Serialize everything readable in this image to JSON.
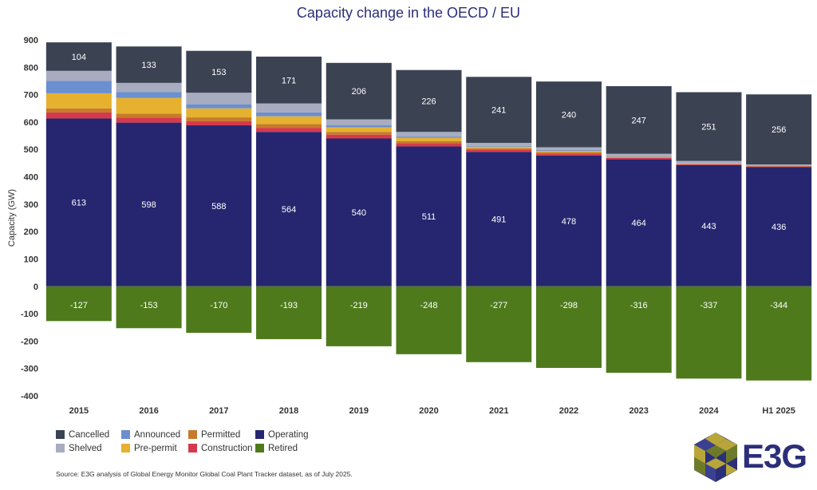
{
  "chart_data": {
    "type": "bar",
    "stacked": true,
    "title": "Capacity change in the OECD / EU",
    "ylabel": "Capacity (GW)",
    "xlabel": "",
    "ylim": [
      -400,
      900
    ],
    "yticks": [
      900,
      800,
      700,
      600,
      500,
      400,
      300,
      200,
      100,
      0,
      -100,
      -200,
      -300,
      -400
    ],
    "grid": false,
    "legend_position": "bottom-left",
    "categories": [
      "2015",
      "2016",
      "2017",
      "2018",
      "2019",
      "2020",
      "2021",
      "2022",
      "2023",
      "2024",
      "H1 2025"
    ],
    "series": [
      {
        "name": "Operating",
        "color": "#262670",
        "values": [
          613,
          598,
          588,
          564,
          540,
          511,
          491,
          478,
          464,
          443,
          436
        ]
      },
      {
        "name": "Construction",
        "color": "#d53a4c",
        "values": [
          22,
          18,
          15,
          15,
          14,
          12,
          9,
          7,
          5,
          3,
          2
        ]
      },
      {
        "name": "Permitted",
        "color": "#c87a2a",
        "values": [
          15,
          15,
          14,
          14,
          10,
          7,
          4,
          4,
          2,
          1,
          1
        ]
      },
      {
        "name": "Pre-permit",
        "color": "#e6b12f",
        "values": [
          55,
          57,
          33,
          28,
          17,
          12,
          6,
          6,
          2,
          1,
          1
        ]
      },
      {
        "name": "Announced",
        "color": "#6b8fcf",
        "values": [
          45,
          22,
          15,
          14,
          8,
          5,
          3,
          3,
          2,
          1,
          1
        ]
      },
      {
        "name": "Shelved",
        "color": "#a8acc0",
        "values": [
          37,
          33,
          42,
          33,
          21,
          17,
          11,
          10,
          9,
          9,
          4
        ]
      },
      {
        "name": "Cancelled",
        "color": "#3b4252",
        "values": [
          104,
          133,
          153,
          171,
          206,
          226,
          241,
          240,
          247,
          251,
          256
        ]
      },
      {
        "name": "Retired",
        "color": "#4e7a1c",
        "values": [
          -127,
          -153,
          -170,
          -193,
          -219,
          -248,
          -277,
          -298,
          -316,
          -337,
          -344
        ]
      }
    ],
    "data_labels": {
      "Operating": [
        "613",
        "598",
        "588",
        "564",
        "540",
        "511",
        "491",
        "478",
        "464",
        "443",
        "436"
      ],
      "Cancelled": [
        "104",
        "133",
        "153",
        "171",
        "206",
        "226",
        "241",
        "240",
        "247",
        "251",
        "256"
      ],
      "Retired": [
        "-127",
        "-153",
        "-170",
        "-193",
        "-219",
        "-248",
        "-277",
        "-298",
        "-316",
        "-337",
        "-344"
      ]
    }
  },
  "legend": [
    {
      "label": "Cancelled",
      "color": "#3b4252"
    },
    {
      "label": "Announced",
      "color": "#6b8fcf"
    },
    {
      "label": "Permitted",
      "color": "#c87a2a"
    },
    {
      "label": "Operating",
      "color": "#262670"
    },
    {
      "label": "Shelved",
      "color": "#a8acc0"
    },
    {
      "label": "Pre-permit",
      "color": "#e6b12f"
    },
    {
      "label": "Construction",
      "color": "#d53a4c"
    },
    {
      "label": "Retired",
      "color": "#4e7a1c"
    }
  ],
  "source": "Source: E3G analysis of Global Energy Monitor Global Coal Plant Tracker dataset, as of July 2025.",
  "logo": {
    "text": "E3G",
    "colors": {
      "navy": "#2b2f7a",
      "gold": "#b8a63a",
      "olive": "#6d7a2a"
    }
  }
}
